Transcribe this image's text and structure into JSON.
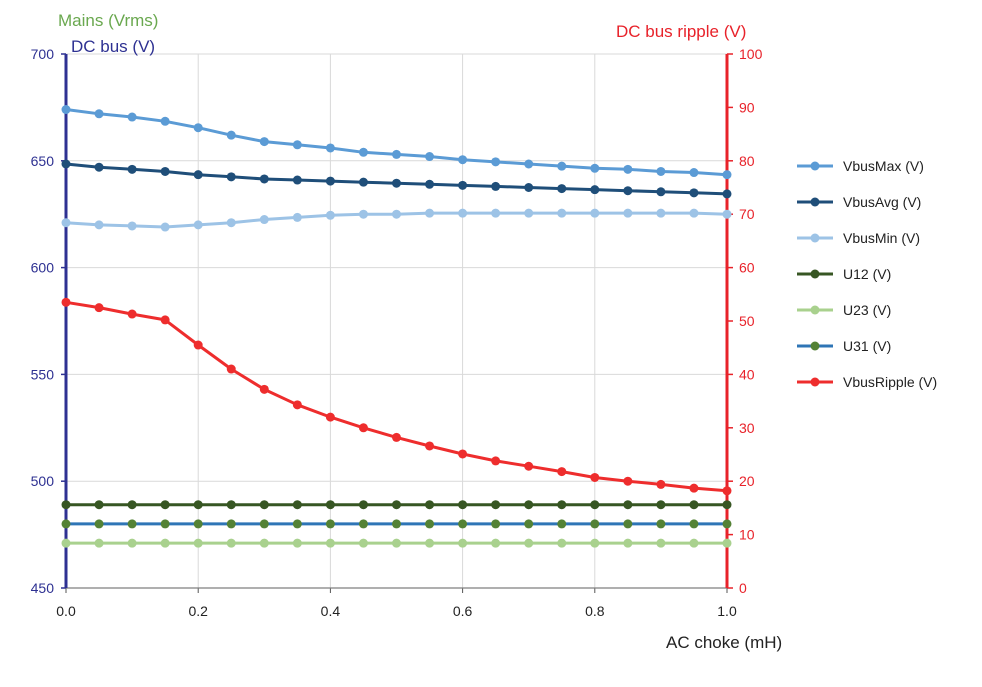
{
  "chart_data": {
    "type": "line",
    "title": "",
    "xlabel": "AC choke (mH)",
    "ylabel_mains": "Mains (Vrms)",
    "ylabel_left": "DC bus (V)",
    "ylabel_right": "DC bus ripple (V)",
    "xlim": [
      0,
      1.0
    ],
    "ylim_left": [
      450,
      700
    ],
    "ylim_right": [
      0,
      100
    ],
    "x_ticks": [
      "0.0",
      "0.2",
      "0.4",
      "0.6",
      "0.8",
      "1.0"
    ],
    "y_left_ticks": [
      "450",
      "500",
      "550",
      "600",
      "650",
      "700"
    ],
    "y_right_ticks": [
      "0",
      "10",
      "20",
      "30",
      "40",
      "50",
      "60",
      "70",
      "80",
      "90",
      "100"
    ],
    "grid": true,
    "legend_position": "right",
    "x": [
      0,
      0.05,
      0.1,
      0.15,
      0.2,
      0.25,
      0.3,
      0.35,
      0.4,
      0.45,
      0.5,
      0.55,
      0.6,
      0.65,
      0.7,
      0.75,
      0.8,
      0.85,
      0.9,
      0.95,
      1.0
    ],
    "series": [
      {
        "name": "VbusMax (V)",
        "axis": "left",
        "color": "#5b9bd5",
        "values": [
          674,
          672,
          670.5,
          668.5,
          665.5,
          662,
          659,
          657.5,
          656,
          654,
          653,
          652,
          650.5,
          649.5,
          648.5,
          647.5,
          646.5,
          646,
          645,
          644.5,
          643.5
        ]
      },
      {
        "name": "VbusAvg (V)",
        "axis": "left",
        "color": "#1f4e79",
        "values": [
          648.5,
          647,
          646,
          645,
          643.5,
          642.5,
          641.5,
          641,
          640.5,
          640,
          639.5,
          639,
          638.5,
          638,
          637.5,
          637,
          636.5,
          636,
          635.5,
          635,
          634.5
        ]
      },
      {
        "name": "VbusMin (V)",
        "axis": "left",
        "color": "#9dc3e6",
        "values": [
          621,
          620,
          619.5,
          619,
          620,
          621,
          622.5,
          623.5,
          624.5,
          625,
          625,
          625.5,
          625.5,
          625.5,
          625.5,
          625.5,
          625.5,
          625.5,
          625.5,
          625.5,
          625
        ]
      },
      {
        "name": "U12 (V)",
        "axis": "left",
        "color": "#375623",
        "values": [
          489,
          489,
          489,
          489,
          489,
          489,
          489,
          489,
          489,
          489,
          489,
          489,
          489,
          489,
          489,
          489,
          489,
          489,
          489,
          489,
          489
        ]
      },
      {
        "name": "U23 (V)",
        "axis": "left",
        "color": "#a9d18e",
        "values": [
          471,
          471,
          471,
          471,
          471,
          471,
          471,
          471,
          471,
          471,
          471,
          471,
          471,
          471,
          471,
          471,
          471,
          471,
          471,
          471,
          471
        ]
      },
      {
        "name": "U31 (V)",
        "axis": "left",
        "color": "#2e75b6",
        "marker_color": "#548235",
        "values": [
          480,
          480,
          480,
          480,
          480,
          480,
          480,
          480,
          480,
          480,
          480,
          480,
          480,
          480,
          480,
          480,
          480,
          480,
          480,
          480,
          480
        ]
      },
      {
        "name": "VbusRipple (V)",
        "axis": "right",
        "color": "#ee2d2d",
        "values": [
          53.5,
          52.5,
          51.3,
          50.2,
          45.5,
          41,
          37.2,
          34.3,
          32,
          30,
          28.2,
          26.6,
          25.1,
          23.8,
          22.8,
          21.8,
          20.7,
          20,
          19.4,
          18.7,
          18.2
        ]
      }
    ]
  },
  "colors": {
    "left_axis": "#2e3192",
    "right_axis": "#e8222a",
    "mains_label": "#6aa84f",
    "grid": "#d9d9d9"
  }
}
